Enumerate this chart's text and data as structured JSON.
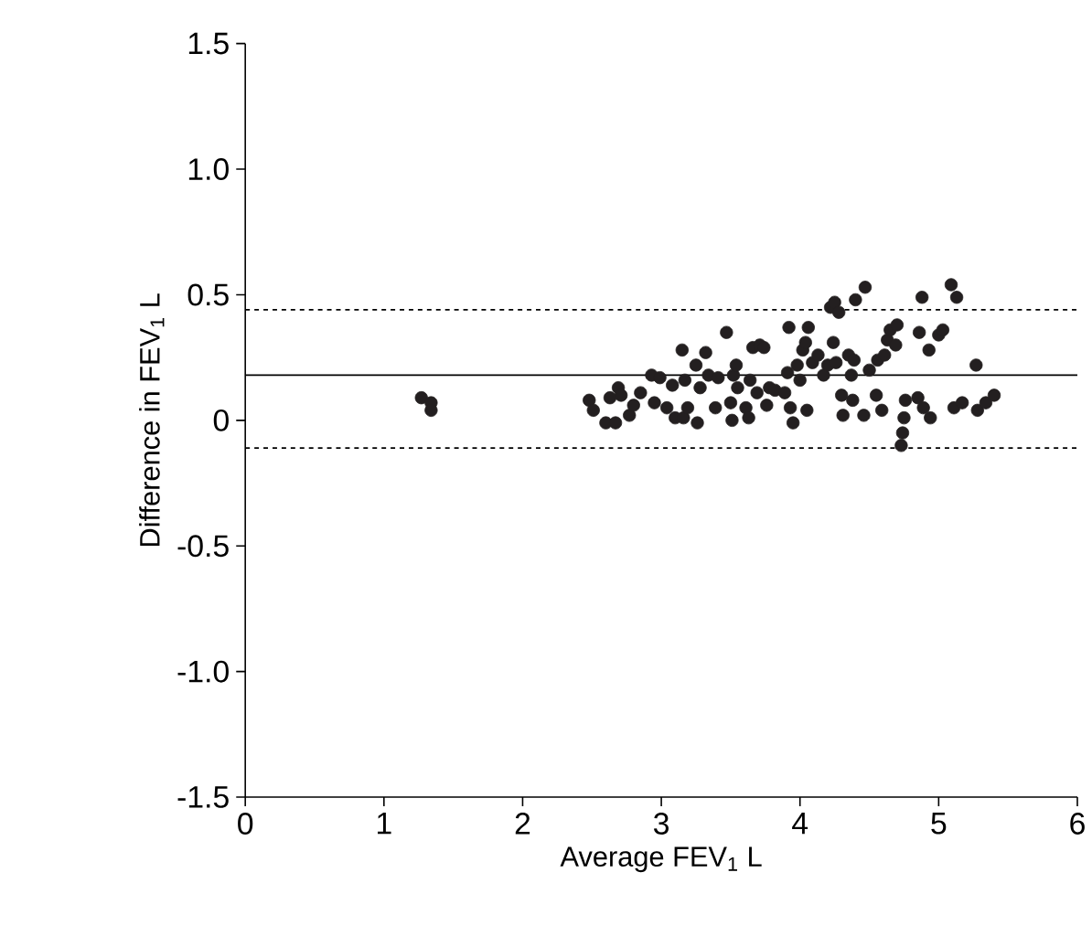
{
  "chart_data": {
    "type": "scatter",
    "xlabel": "Average FEV$_{1}$ L",
    "ylabel": "Difference in FEV$_{1}$ L",
    "xlim": [
      0,
      6
    ],
    "ylim": [
      -1.5,
      1.5
    ],
    "xticks": [
      0,
      1,
      2,
      3,
      4,
      5,
      6
    ],
    "yticks": [
      {
        "value": -1.5,
        "label": "-1.5"
      },
      {
        "value": -1.0,
        "label": "-1.0"
      },
      {
        "value": -0.5,
        "label": "-0.5"
      },
      0,
      {
        "value": 0.5,
        "label": "0.5"
      },
      {
        "value": 1.0,
        "label": "1.0"
      },
      {
        "value": 1.5,
        "label": "1.5"
      }
    ],
    "marker": "circle",
    "color": "#231f20",
    "x": [
      1.27,
      1.34,
      1.34,
      2.48,
      2.51,
      2.6,
      2.67,
      2.63,
      2.69,
      2.71,
      2.77,
      2.8,
      2.85,
      2.93,
      2.95,
      2.99,
      3.04,
      3.08,
      3.1,
      3.15,
      3.17,
      3.16,
      3.19,
      3.25,
      3.26,
      3.28,
      3.32,
      3.34,
      3.39,
      3.41,
      3.47,
      3.5,
      3.51,
      3.52,
      3.54,
      3.55,
      3.61,
      3.63,
      3.64,
      3.66,
      3.69,
      3.71,
      3.76,
      3.78,
      3.82,
      3.74,
      3.89,
      3.92,
      3.93,
      3.95,
      3.91,
      3.98,
      4.0,
      4.02,
      4.04,
      4.06,
      4.05,
      4.09,
      4.13,
      4.17,
      4.2,
      4.22,
      4.25,
      4.28,
      4.24,
      4.26,
      4.3,
      4.31,
      4.35,
      4.37,
      4.38,
      4.39,
      4.4,
      4.47,
      4.46,
      4.5,
      4.55,
      4.56,
      4.59,
      4.61,
      4.63,
      4.65,
      4.69,
      4.7,
      4.73,
      4.74,
      4.75,
      4.76,
      4.85,
      4.86,
      4.88,
      4.89,
      4.93,
      4.94,
      5.0,
      5.03,
      5.09,
      5.13,
      5.11,
      5.17,
      5.27,
      5.28,
      5.34,
      5.4
    ],
    "values": [
      0.09,
      0.07,
      0.04,
      0.08,
      0.04,
      -0.01,
      -0.01,
      0.09,
      0.13,
      0.1,
      0.02,
      0.06,
      0.11,
      0.18,
      0.07,
      0.17,
      0.05,
      0.14,
      0.01,
      0.28,
      0.16,
      0.01,
      0.05,
      0.22,
      -0.01,
      0.13,
      0.27,
      0.18,
      0.05,
      0.17,
      0.35,
      0.07,
      0.0,
      0.18,
      0.22,
      0.13,
      0.05,
      0.01,
      0.16,
      0.29,
      0.11,
      0.3,
      0.06,
      0.13,
      0.12,
      0.29,
      0.11,
      0.37,
      0.05,
      -0.01,
      0.19,
      0.22,
      0.16,
      0.28,
      0.31,
      0.37,
      0.04,
      0.23,
      0.26,
      0.18,
      0.22,
      0.45,
      0.47,
      0.43,
      0.31,
      0.23,
      0.1,
      0.02,
      0.26,
      0.18,
      0.08,
      0.24,
      0.48,
      0.53,
      0.02,
      0.2,
      0.1,
      0.24,
      0.04,
      0.26,
      0.32,
      0.36,
      0.3,
      0.38,
      -0.1,
      -0.05,
      0.01,
      0.08,
      0.09,
      0.35,
      0.49,
      0.05,
      0.28,
      0.01,
      0.34,
      0.36,
      0.54,
      0.49,
      0.05,
      0.07,
      0.22,
      0.04,
      0.07,
      0.1
    ],
    "ref_lines": [
      {
        "axis": "y",
        "value": 0.18,
        "line_style": "solid"
      },
      {
        "axis": "y",
        "value": 0.44,
        "line_style": "dotted"
      },
      {
        "axis": "y",
        "value": -0.11,
        "line_style": "dotted"
      }
    ]
  }
}
